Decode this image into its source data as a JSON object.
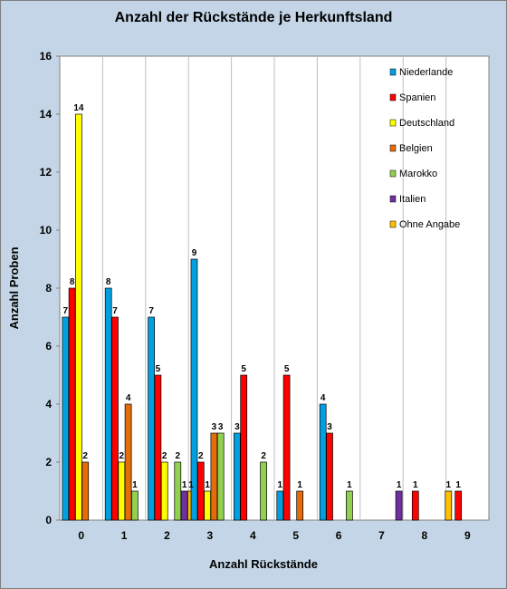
{
  "chart_data": {
    "type": "bar",
    "title": "Anzahl der Rückstände je Herkunftsland",
    "xlabel": "Anzahl Rückstände",
    "ylabel": "Anzahl Proben",
    "categories": [
      "0",
      "1",
      "2",
      "3",
      "4",
      "5",
      "6",
      "7",
      "8",
      "9"
    ],
    "ylim": [
      0,
      16
    ],
    "yticks": [
      "0",
      "2",
      "4",
      "6",
      "8",
      "10",
      "12",
      "14",
      "16"
    ],
    "grid": "vertical",
    "legend_position": "top-right",
    "series": [
      {
        "name": "Niederlande",
        "color": "#00a0e0",
        "values": [
          7,
          8,
          7,
          9,
          3,
          1,
          4,
          null,
          null,
          null
        ]
      },
      {
        "name": "Spanien",
        "color": "#ff0000",
        "values": [
          8,
          7,
          5,
          2,
          5,
          5,
          3,
          null,
          1,
          1
        ]
      },
      {
        "name": "Deutschland",
        "color": "#ffff00",
        "values": [
          14,
          2,
          2,
          1,
          null,
          null,
          null,
          null,
          null,
          null
        ]
      },
      {
        "name": "Belgien",
        "color": "#e46c0a",
        "values": [
          2,
          4,
          null,
          3,
          null,
          1,
          null,
          null,
          null,
          null
        ]
      },
      {
        "name": "Marokko",
        "color": "#92d050",
        "values": [
          null,
          1,
          2,
          3,
          2,
          null,
          1,
          null,
          null,
          null
        ]
      },
      {
        "name": "Italien",
        "color": "#7030a0",
        "values": [
          null,
          null,
          1,
          null,
          null,
          null,
          null,
          1,
          null,
          null
        ]
      },
      {
        "name": "Ohne Angabe",
        "color": "#ffc000",
        "values": [
          null,
          null,
          1,
          null,
          null,
          null,
          null,
          null,
          1,
          null
        ]
      }
    ]
  }
}
